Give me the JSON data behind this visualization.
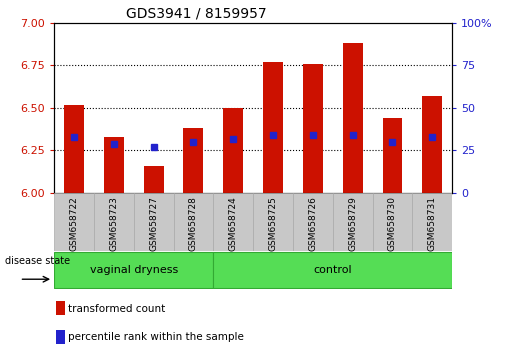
{
  "title": "GDS3941 / 8159957",
  "samples": [
    "GSM658722",
    "GSM658723",
    "GSM658727",
    "GSM658728",
    "GSM658724",
    "GSM658725",
    "GSM658726",
    "GSM658729",
    "GSM658730",
    "GSM658731"
  ],
  "red_values": [
    6.52,
    6.33,
    6.16,
    6.38,
    6.5,
    6.77,
    6.76,
    6.88,
    6.44,
    6.57
  ],
  "blue_values_pct": [
    33,
    29,
    27,
    30,
    32,
    34,
    34,
    34,
    30,
    33
  ],
  "y_min": 6.0,
  "y_max": 7.0,
  "y_ticks_left": [
    6.0,
    6.25,
    6.5,
    6.75,
    7.0
  ],
  "y_ticks_right": [
    0,
    25,
    50,
    75,
    100
  ],
  "group_sizes": [
    4,
    6
  ],
  "group_starts": [
    0,
    4
  ],
  "group_labels": [
    "vaginal dryness",
    "control"
  ],
  "group_bg_color": "#55dd55",
  "bar_color_red": "#cc1100",
  "bar_color_blue": "#2222cc",
  "tick_color_left": "#cc1100",
  "tick_color_right": "#2222cc",
  "disease_state_label": "disease state",
  "legend_red": "transformed count",
  "legend_blue": "percentile rank within the sample",
  "sample_bg_color": "#c8c8c8",
  "axis_bg_color": "#ffffff",
  "bar_width": 0.5,
  "figsize": [
    5.15,
    3.54
  ],
  "dpi": 100
}
